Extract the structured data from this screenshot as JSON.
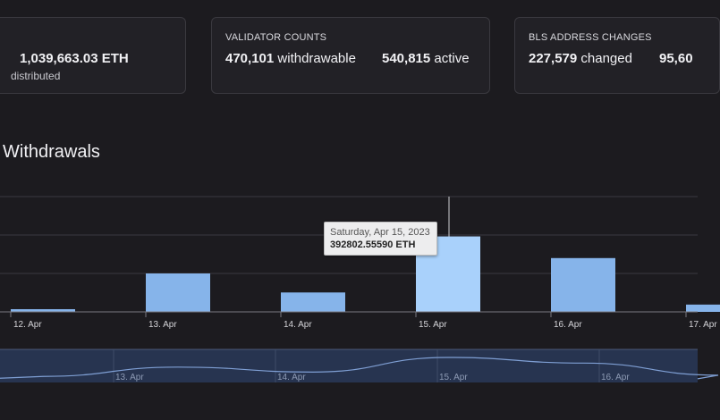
{
  "stats": {
    "distributed": {
      "value": "1,039,663.03 ETH",
      "sub": "distributed"
    },
    "validator_counts": {
      "label": "VALIDATOR COUNTS",
      "withdrawable_value": "470,101",
      "withdrawable_label": "withdrawable",
      "active_value": "540,815",
      "active_label": "active"
    },
    "bls": {
      "label": "BLS ADDRESS CHANGES",
      "changed_value": "227,579",
      "changed_label": "changed",
      "other_value": "95,60"
    }
  },
  "section_title": "Withdrawals",
  "tooltip": {
    "date": "Saturday, Apr 15, 2023",
    "value": "392802.55590 ETH"
  },
  "colors": {
    "bar": "#86b4ea",
    "bar_highlight": "#a9d1fb",
    "navigator_fill": "#273450",
    "navigator_line": "#7f9fd4",
    "grid": "#3a3940",
    "axis": "#7a7a80"
  },
  "chart_data": {
    "type": "bar",
    "title": "Withdrawals",
    "categories": [
      "12. Apr",
      "13. Apr",
      "14. Apr",
      "15. Apr",
      "16. Apr",
      "17. Apr"
    ],
    "series": [
      {
        "values": [
          14000,
          200000,
          101000,
          392802.5559,
          280000,
          38000
        ]
      }
    ],
    "ylim": [
      0,
      600000
    ],
    "grid": true,
    "highlighted_category": "15. Apr",
    "navigator_ticks": [
      "13. Apr",
      "14. Apr",
      "15. Apr",
      "16. Apr"
    ]
  }
}
